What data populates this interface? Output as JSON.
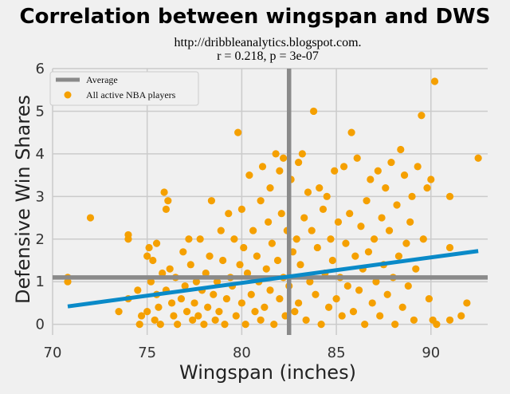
{
  "chart_data": {
    "type": "scatter",
    "title": "Correlation between wingspan and DWS",
    "subtitle_lines": [
      "http://dribbleanalytics.blogspot.com.",
      "r = 0.218, p = 3e-07"
    ],
    "xlabel": "Wingspan (inches)",
    "ylabel": "Defensive Win Shares",
    "xlim": [
      70,
      93
    ],
    "ylim": [
      -0.25,
      6
    ],
    "x_ticks": [
      70,
      75,
      80,
      85,
      90
    ],
    "y_ticks": [
      0,
      1,
      2,
      3,
      4,
      5,
      6
    ],
    "grid": true,
    "legend": {
      "placement": "top-left",
      "entries": [
        {
          "label": "Average",
          "kind": "line",
          "color": "#8a8a8a"
        },
        {
          "label": "All active NBA players",
          "kind": "marker",
          "color": "#f5a000"
        }
      ]
    },
    "average_lines": {
      "x": 82.5,
      "y": 1.1,
      "color": "#8a8a8a"
    },
    "regression_line": {
      "x": [
        70.8,
        92.5
      ],
      "y": [
        0.42,
        1.72
      ],
      "color": "#0a8ac8"
    },
    "series": [
      {
        "name": "All active NBA players",
        "color": "#f5a000",
        "points": [
          [
            70.8,
            1.1
          ],
          [
            70.8,
            1.0
          ],
          [
            72.0,
            2.5
          ],
          [
            73.5,
            0.3
          ],
          [
            74.0,
            2.1
          ],
          [
            74.0,
            2.0
          ],
          [
            74.0,
            0.6
          ],
          [
            74.5,
            0.8
          ],
          [
            74.6,
            0.0
          ],
          [
            74.7,
            0.2
          ],
          [
            75.0,
            1.6
          ],
          [
            75.0,
            0.3
          ],
          [
            75.1,
            1.8
          ],
          [
            75.2,
            1.0
          ],
          [
            75.3,
            1.5
          ],
          [
            75.4,
            0.1
          ],
          [
            75.5,
            1.9
          ],
          [
            75.5,
            0.7
          ],
          [
            75.6,
            0.4
          ],
          [
            75.7,
            0.0
          ],
          [
            75.8,
            1.2
          ],
          [
            75.9,
            3.1
          ],
          [
            76.0,
            2.7
          ],
          [
            76.0,
            0.8
          ],
          [
            76.1,
            2.9
          ],
          [
            76.2,
            1.3
          ],
          [
            76.3,
            0.5
          ],
          [
            76.4,
            0.2
          ],
          [
            76.5,
            1.1
          ],
          [
            76.6,
            0.0
          ],
          [
            76.8,
            0.6
          ],
          [
            76.9,
            1.7
          ],
          [
            77.0,
            0.9
          ],
          [
            77.1,
            0.3
          ],
          [
            77.2,
            2.0
          ],
          [
            77.3,
            1.4
          ],
          [
            77.4,
            0.1
          ],
          [
            77.5,
            0.5
          ],
          [
            77.6,
            1.0
          ],
          [
            77.7,
            0.2
          ],
          [
            77.8,
            2.0
          ],
          [
            77.9,
            0.8
          ],
          [
            78.0,
            0.0
          ],
          [
            78.1,
            1.2
          ],
          [
            78.2,
            0.4
          ],
          [
            78.3,
            1.6
          ],
          [
            78.4,
            2.9
          ],
          [
            78.5,
            0.7
          ],
          [
            78.6,
            0.1
          ],
          [
            78.7,
            1.0
          ],
          [
            78.8,
            0.3
          ],
          [
            78.9,
            2.2
          ],
          [
            79.0,
            1.5
          ],
          [
            79.1,
            0.0
          ],
          [
            79.2,
            0.6
          ],
          [
            79.3,
            2.6
          ],
          [
            79.4,
            1.1
          ],
          [
            79.5,
            0.9
          ],
          [
            79.6,
            2.0
          ],
          [
            79.7,
            0.2
          ],
          [
            79.8,
            4.5
          ],
          [
            79.9,
            1.4
          ],
          [
            80.0,
            0.5
          ],
          [
            80.0,
            2.7
          ],
          [
            80.1,
            1.8
          ],
          [
            80.2,
            0.0
          ],
          [
            80.3,
            1.2
          ],
          [
            80.4,
            3.5
          ],
          [
            80.5,
            0.7
          ],
          [
            80.6,
            2.2
          ],
          [
            80.7,
            0.3
          ],
          [
            80.8,
            1.6
          ],
          [
            80.9,
            1.0
          ],
          [
            81.0,
            0.1
          ],
          [
            81.0,
            2.9
          ],
          [
            81.1,
            3.7
          ],
          [
            81.2,
            0.4
          ],
          [
            81.3,
            1.3
          ],
          [
            81.4,
            2.4
          ],
          [
            81.5,
            0.8
          ],
          [
            81.5,
            3.2
          ],
          [
            81.6,
            1.9
          ],
          [
            81.7,
            0.0
          ],
          [
            81.8,
            4.0
          ],
          [
            81.9,
            1.5
          ],
          [
            82.0,
            0.6
          ],
          [
            82.0,
            3.6
          ],
          [
            82.1,
            2.6
          ],
          [
            82.2,
            3.9
          ],
          [
            82.2,
            1.1
          ],
          [
            82.3,
            0.2
          ],
          [
            82.4,
            2.2
          ],
          [
            82.5,
            0.9
          ],
          [
            82.6,
            3.4
          ],
          [
            82.7,
            1.7
          ],
          [
            82.8,
            0.3
          ],
          [
            82.9,
            2.0
          ],
          [
            83.0,
            3.8
          ],
          [
            83.0,
            0.5
          ],
          [
            83.1,
            1.4
          ],
          [
            83.2,
            4.0
          ],
          [
            83.3,
            2.5
          ],
          [
            83.4,
            0.1
          ],
          [
            83.5,
            3.1
          ],
          [
            83.6,
            1.0
          ],
          [
            83.7,
            2.2
          ],
          [
            83.8,
            5.0
          ],
          [
            83.9,
            0.7
          ],
          [
            84.0,
            1.8
          ],
          [
            84.1,
            3.2
          ],
          [
            84.2,
            0.0
          ],
          [
            84.3,
            2.7
          ],
          [
            84.4,
            1.2
          ],
          [
            84.5,
            3.0
          ],
          [
            84.6,
            0.4
          ],
          [
            84.7,
            2.0
          ],
          [
            84.8,
            1.5
          ],
          [
            84.9,
            3.6
          ],
          [
            85.0,
            0.6
          ],
          [
            85.1,
            2.4
          ],
          [
            85.2,
            1.1
          ],
          [
            85.3,
            0.2
          ],
          [
            85.4,
            3.7
          ],
          [
            85.5,
            1.9
          ],
          [
            85.6,
            0.9
          ],
          [
            85.7,
            2.6
          ],
          [
            85.8,
            4.5
          ],
          [
            85.9,
            0.3
          ],
          [
            86.0,
            1.6
          ],
          [
            86.1,
            3.9
          ],
          [
            86.2,
            0.8
          ],
          [
            86.3,
            2.3
          ],
          [
            86.4,
            1.3
          ],
          [
            86.5,
            0.0
          ],
          [
            86.6,
            2.9
          ],
          [
            86.7,
            1.7
          ],
          [
            86.8,
            3.4
          ],
          [
            86.9,
            0.5
          ],
          [
            87.0,
            2.0
          ],
          [
            87.1,
            1.0
          ],
          [
            87.2,
            3.6
          ],
          [
            87.3,
            0.2
          ],
          [
            87.4,
            2.5
          ],
          [
            87.5,
            1.4
          ],
          [
            87.6,
            3.2
          ],
          [
            87.7,
            0.7
          ],
          [
            87.8,
            2.2
          ],
          [
            87.9,
            3.8
          ],
          [
            88.0,
            1.1
          ],
          [
            88.1,
            0.0
          ],
          [
            88.2,
            2.8
          ],
          [
            88.3,
            1.6
          ],
          [
            88.4,
            4.1
          ],
          [
            88.5,
            0.4
          ],
          [
            88.6,
            3.5
          ],
          [
            88.7,
            1.9
          ],
          [
            88.8,
            0.9
          ],
          [
            88.9,
            2.4
          ],
          [
            89.0,
            3.0
          ],
          [
            89.1,
            0.1
          ],
          [
            89.2,
            1.3
          ],
          [
            89.3,
            3.7
          ],
          [
            89.5,
            4.9
          ],
          [
            89.6,
            2.0
          ],
          [
            89.8,
            3.2
          ],
          [
            89.9,
            0.6
          ],
          [
            90.0,
            3.4
          ],
          [
            90.1,
            0.1
          ],
          [
            90.2,
            5.7
          ],
          [
            90.3,
            0.0
          ],
          [
            91.0,
            3.0
          ],
          [
            91.0,
            1.8
          ],
          [
            91.0,
            0.1
          ],
          [
            91.6,
            0.2
          ],
          [
            91.9,
            0.5
          ],
          [
            92.5,
            3.9
          ]
        ]
      }
    ]
  }
}
